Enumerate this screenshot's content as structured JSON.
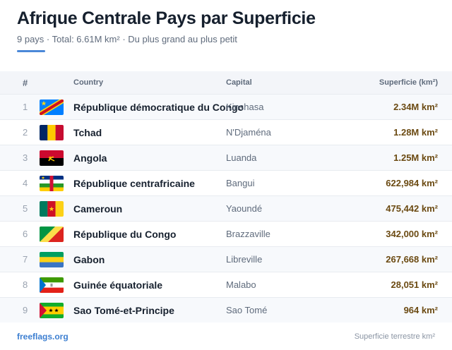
{
  "header": {
    "title": "Afrique Centrale Pays par Superficie",
    "subtitle": "9 pays · Total: 6.61M km² · Du plus grand au plus petit"
  },
  "table": {
    "columns": [
      "#",
      "Country",
      "Capital",
      "Superficie (km²)"
    ],
    "rows": [
      {
        "rank": "1",
        "country": "République démocratique du Congo",
        "capital": "Kinshasa",
        "area": "2.34M km²",
        "flag": "cd-flag-icon"
      },
      {
        "rank": "2",
        "country": "Tchad",
        "capital": "N'Djaména",
        "area": "1.28M km²",
        "flag": "td-flag-icon"
      },
      {
        "rank": "3",
        "country": "Angola",
        "capital": "Luanda",
        "area": "1.25M km²",
        "flag": "ao-flag-icon"
      },
      {
        "rank": "4",
        "country": "République centrafricaine",
        "capital": "Bangui",
        "area": "622,984 km²",
        "flag": "cf-flag-icon"
      },
      {
        "rank": "5",
        "country": "Cameroun",
        "capital": "Yaoundé",
        "area": "475,442 km²",
        "flag": "cm-flag-icon"
      },
      {
        "rank": "6",
        "country": "République du Congo",
        "capital": "Brazzaville",
        "area": "342,000 km²",
        "flag": "cg-flag-icon"
      },
      {
        "rank": "7",
        "country": "Gabon",
        "capital": "Libreville",
        "area": "267,668 km²",
        "flag": "ga-flag-icon"
      },
      {
        "rank": "8",
        "country": "Guinée équatoriale",
        "capital": "Malabo",
        "area": "28,051 km²",
        "flag": "gq-flag-icon"
      },
      {
        "rank": "9",
        "country": "Sao Tomé-et-Principe",
        "capital": "Sao Tomé",
        "area": "964 km²",
        "flag": "st-flag-icon"
      }
    ]
  },
  "footer": {
    "brand": "freeflags.org",
    "note": "Superficie terrestre km²"
  },
  "colors": {
    "accent": "#4a88d8",
    "area_text": "#6b4a12",
    "brand": "#3d7fd1"
  }
}
